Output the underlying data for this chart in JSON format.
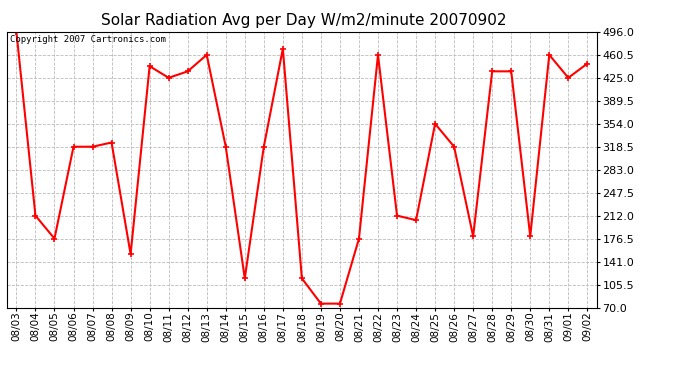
{
  "title": "Solar Radiation Avg per Day W/m2/minute 20070902",
  "copyright": "Copyright 2007 Cartronics.com",
  "dates": [
    "08/03",
    "08/04",
    "08/05",
    "08/06",
    "08/07",
    "08/08",
    "08/09",
    "08/10",
    "08/11",
    "08/12",
    "08/13",
    "08/14",
    "08/15",
    "08/16",
    "08/17",
    "08/18",
    "08/19",
    "08/20",
    "08/21",
    "08/22",
    "08/23",
    "08/24",
    "08/25",
    "08/26",
    "08/27",
    "08/28",
    "08/29",
    "08/30",
    "08/31",
    "09/01",
    "09/02"
  ],
  "values": [
    496.0,
    212.0,
    176.5,
    318.5,
    318.5,
    325.0,
    152.5,
    443.0,
    425.0,
    435.0,
    460.5,
    318.5,
    115.0,
    318.5,
    470.0,
    115.0,
    76.0,
    76.0,
    176.5,
    460.5,
    212.0,
    205.0,
    354.0,
    318.5,
    180.0,
    435.0,
    435.0,
    180.0,
    460.5,
    425.0,
    447.0
  ],
  "line_color": "#ff0000",
  "marker": "+",
  "marker_size": 5,
  "linewidth": 1.5,
  "ylim": [
    70.0,
    496.0
  ],
  "yticks": [
    70.0,
    105.5,
    141.0,
    176.5,
    212.0,
    247.5,
    283.0,
    318.5,
    354.0,
    389.5,
    425.0,
    460.5,
    496.0
  ],
  "background_color": "#ffffff",
  "grid_color": "#bbbbbb",
  "title_fontsize": 11,
  "copyright_fontsize": 6.5,
  "tick_fontsize": 7.5,
  "ytick_fontsize": 8
}
